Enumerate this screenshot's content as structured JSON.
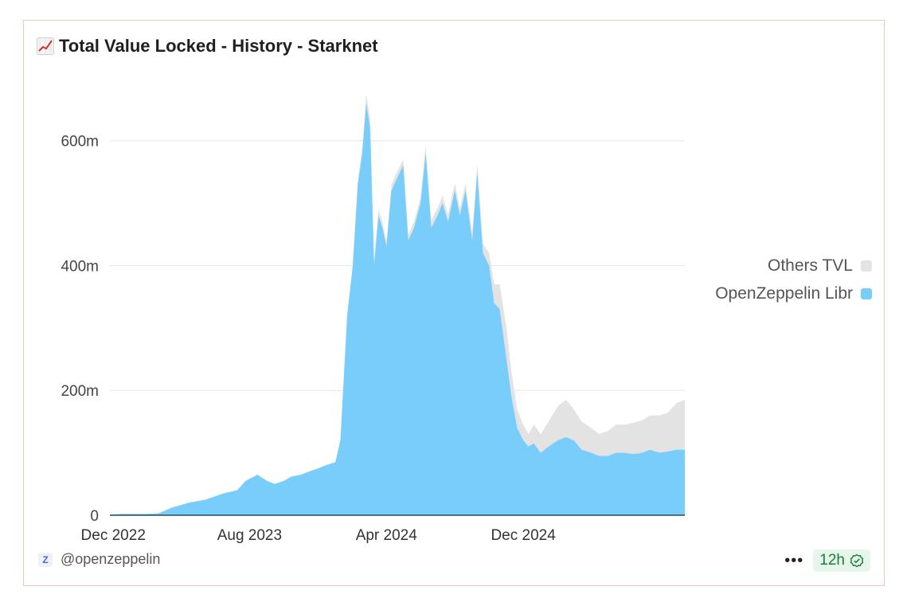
{
  "title": "Total Value Locked - History - Starknet",
  "title_icon": "chart-increasing-icon",
  "colors": {
    "openzeppelin": "#78cdfa",
    "others": "#e3e3e3",
    "baseline": "#2a4d5c",
    "grid": "#e6e6e6",
    "card_border": "#f1c6b8",
    "badge_bg": "#e6f6ea",
    "badge_text": "#1e7a3c"
  },
  "footer": {
    "brand_icon": "openzeppelin-logo-icon",
    "brand_icon_letter": "Z",
    "handle": "@openzeppelin",
    "more_label": "•••",
    "freshness": "12h",
    "freshness_icon": "verified-check-icon"
  },
  "chart_data": {
    "type": "area",
    "stacked": true,
    "ylim": [
      0,
      680000000
    ],
    "yticks": [
      0,
      200000000,
      400000000,
      600000000
    ],
    "ytick_labels": [
      "0",
      "200m",
      "400m",
      "600m"
    ],
    "xlim": [
      "2022-11-25",
      "2025-09-15"
    ],
    "xticks": [
      "2022-12-01",
      "2023-08-01",
      "2024-04-01",
      "2024-12-01"
    ],
    "xtick_labels": [
      "Dec 2022",
      "Aug 2023",
      "Apr 2024",
      "Dec 2024"
    ],
    "grid": true,
    "legend_position": "right",
    "legend": [
      {
        "name": "Others TVL",
        "color": "#e3e3e3"
      },
      {
        "name": "OpenZeppelin Libr",
        "color": "#78cdfa"
      }
    ],
    "x": [
      "2022-11-25",
      "2022-12-15",
      "2023-01-10",
      "2023-02-01",
      "2023-02-20",
      "2023-03-15",
      "2023-04-15",
      "2023-05-15",
      "2023-06-15",
      "2023-07-10",
      "2023-07-25",
      "2023-08-15",
      "2023-09-01",
      "2023-09-15",
      "2023-10-01",
      "2023-10-15",
      "2023-11-01",
      "2023-11-15",
      "2023-12-01",
      "2023-12-15",
      "2024-01-01",
      "2024-01-10",
      "2024-01-22",
      "2024-02-01",
      "2024-02-10",
      "2024-02-18",
      "2024-02-25",
      "2024-03-03",
      "2024-03-10",
      "2024-03-18",
      "2024-03-25",
      "2024-04-01",
      "2024-04-10",
      "2024-04-20",
      "2024-05-01",
      "2024-05-10",
      "2024-05-20",
      "2024-06-01",
      "2024-06-10",
      "2024-06-20",
      "2024-07-01",
      "2024-07-10",
      "2024-07-20",
      "2024-08-01",
      "2024-08-10",
      "2024-08-20",
      "2024-09-01",
      "2024-09-10",
      "2024-09-20",
      "2024-10-01",
      "2024-10-10",
      "2024-10-20",
      "2024-11-01",
      "2024-11-10",
      "2024-11-20",
      "2024-12-01",
      "2024-12-10",
      "2024-12-20",
      "2025-01-01",
      "2025-01-15",
      "2025-02-01",
      "2025-02-15",
      "2025-03-01",
      "2025-03-15",
      "2025-04-01",
      "2025-04-15",
      "2025-05-01",
      "2025-05-15",
      "2025-06-01",
      "2025-06-15",
      "2025-07-01",
      "2025-07-15",
      "2025-08-01",
      "2025-08-15",
      "2025-09-01",
      "2025-09-15"
    ],
    "series": [
      {
        "name": "OpenZeppelin Libr",
        "values": [
          1000000,
          2000000,
          2000000,
          2000000,
          3000000,
          12000000,
          20000000,
          25000000,
          35000000,
          40000000,
          55000000,
          65000000,
          55000000,
          50000000,
          55000000,
          62000000,
          65000000,
          70000000,
          75000000,
          80000000,
          85000000,
          120000000,
          320000000,
          400000000,
          530000000,
          580000000,
          660000000,
          620000000,
          400000000,
          480000000,
          460000000,
          430000000,
          520000000,
          540000000,
          560000000,
          440000000,
          460000000,
          500000000,
          580000000,
          460000000,
          480000000,
          500000000,
          470000000,
          520000000,
          480000000,
          520000000,
          440000000,
          550000000,
          420000000,
          400000000,
          340000000,
          330000000,
          250000000,
          190000000,
          140000000,
          120000000,
          110000000,
          115000000,
          100000000,
          110000000,
          120000000,
          125000000,
          120000000,
          105000000,
          100000000,
          95000000,
          95000000,
          100000000,
          100000000,
          98000000,
          100000000,
          105000000,
          100000000,
          102000000,
          105000000,
          105000000
        ]
      },
      {
        "name": "Others TVL",
        "values": [
          0,
          0,
          0,
          0,
          0,
          0,
          0,
          0,
          0,
          0,
          0,
          0,
          0,
          0,
          0,
          0,
          0,
          0,
          0,
          0,
          0,
          0,
          0,
          0,
          5000000,
          10000000,
          15000000,
          15000000,
          10000000,
          10000000,
          10000000,
          10000000,
          10000000,
          10000000,
          10000000,
          10000000,
          10000000,
          10000000,
          12000000,
          12000000,
          12000000,
          12000000,
          12000000,
          12000000,
          12000000,
          12000000,
          12000000,
          12000000,
          15000000,
          20000000,
          30000000,
          40000000,
          50000000,
          40000000,
          30000000,
          25000000,
          20000000,
          30000000,
          30000000,
          40000000,
          55000000,
          60000000,
          50000000,
          45000000,
          40000000,
          35000000,
          40000000,
          45000000,
          45000000,
          50000000,
          52000000,
          55000000,
          60000000,
          62000000,
          75000000,
          80000000
        ]
      }
    ]
  }
}
